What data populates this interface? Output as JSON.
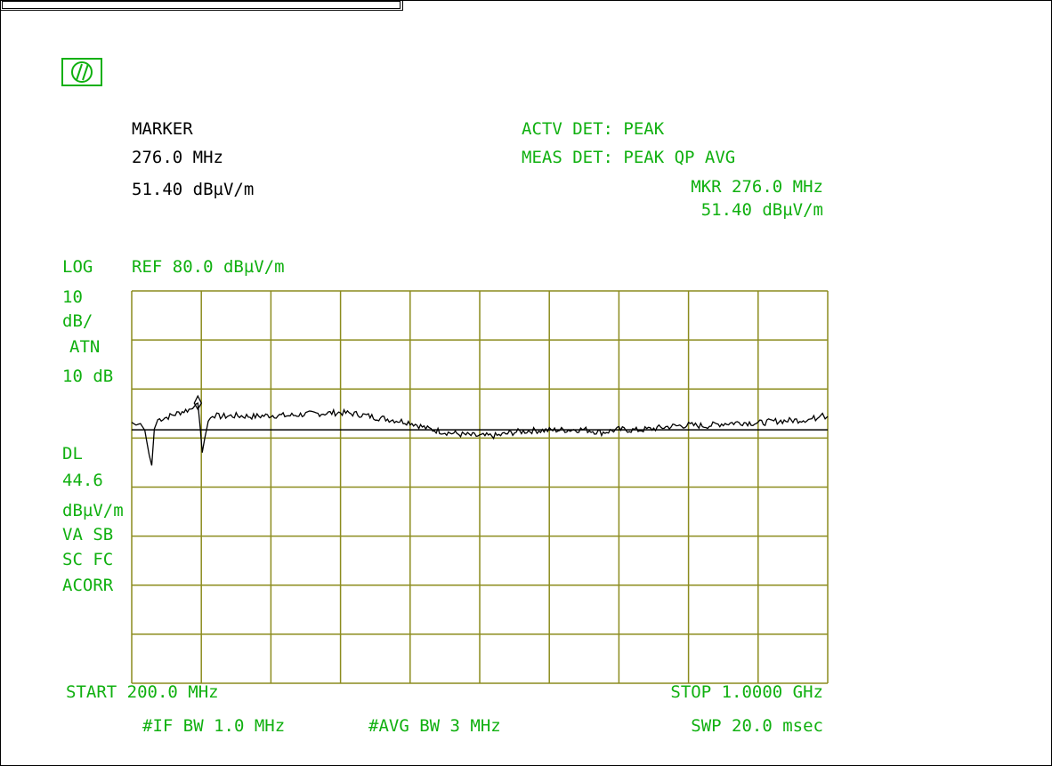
{
  "colors": {
    "text_black": "#000000",
    "text_green": "#10b010",
    "grid": "#8c8c1e",
    "trace": "#000000"
  },
  "logo": {
    "icon": "hp-logo-icon"
  },
  "marker_panel": {
    "title": "MARKER",
    "freq": "276.0 MHz",
    "level": "51.40 dBµV/m"
  },
  "detector_panel": {
    "actv_det": "ACTV DET: PEAK",
    "meas_det": "MEAS DET: PEAK QP AVG",
    "mkr_freq": "MKR 276.0 MHz",
    "mkr_level": "51.40 dBµV/m"
  },
  "side_labels": {
    "log": "LOG",
    "ref": "REF 80.0 dBµV/m",
    "scale_value": "10",
    "scale_unit": "dB/",
    "atn": "ATN",
    "atn_value": "10 dB",
    "dl": "DL",
    "dl_value": "44.6",
    "dl_unit": "dBµV/m",
    "va_sb": "VA SB",
    "sc_fc": "SC FC",
    "acorr": "ACORR"
  },
  "footer": {
    "start": "START 200.0 MHz",
    "stop": "STOP 1.0000 GHz",
    "if_bw": "#IF BW 1.0 MHz",
    "avg_bw": "#AVG BW 3 MHz",
    "swp": "SWP 20.0 msec"
  },
  "chart_data": {
    "type": "line",
    "xlabel": "",
    "ylabel": "",
    "x_unit": "MHz",
    "y_unit": "dBµV/m",
    "xlim": [
      200,
      1000
    ],
    "ylim": [
      -20,
      80
    ],
    "grid": true,
    "display_line": 44.6,
    "marker": {
      "x": 276.0,
      "y": 51.4
    },
    "series": [
      {
        "points": [
          [
            200,
            46.5
          ],
          [
            205,
            45.8
          ],
          [
            210,
            46.2
          ],
          [
            215,
            44.5
          ],
          [
            220,
            38.2
          ],
          [
            223,
            35.5
          ],
          [
            226,
            44.8
          ],
          [
            230,
            47.2
          ],
          [
            240,
            47.8
          ],
          [
            250,
            48.6
          ],
          [
            260,
            49.4
          ],
          [
            270,
            50.0
          ],
          [
            274,
            51.2
          ],
          [
            276,
            51.4
          ],
          [
            279,
            44.5
          ],
          [
            281,
            38.8
          ],
          [
            284,
            42.5
          ],
          [
            288,
            46.8
          ],
          [
            293,
            48.5
          ],
          [
            300,
            48.0
          ],
          [
            320,
            48.2
          ],
          [
            340,
            48.0
          ],
          [
            360,
            48.3
          ],
          [
            380,
            48.2
          ],
          [
            400,
            48.6
          ],
          [
            420,
            48.8
          ],
          [
            440,
            49.0
          ],
          [
            460,
            48.6
          ],
          [
            480,
            47.8
          ],
          [
            520,
            46.5
          ],
          [
            540,
            44.9
          ],
          [
            560,
            44.0
          ],
          [
            580,
            43.4
          ],
          [
            600,
            43.0
          ],
          [
            620,
            43.1
          ],
          [
            640,
            44.0
          ],
          [
            660,
            44.4
          ],
          [
            680,
            44.5
          ],
          [
            700,
            44.6
          ],
          [
            720,
            44.7
          ],
          [
            740,
            43.9
          ],
          [
            760,
            44.7
          ],
          [
            780,
            44.5
          ],
          [
            800,
            44.9
          ],
          [
            820,
            45.5
          ],
          [
            840,
            45.8
          ],
          [
            860,
            45.6
          ],
          [
            880,
            46.2
          ],
          [
            900,
            46.5
          ],
          [
            920,
            46.3
          ],
          [
            940,
            46.8
          ],
          [
            960,
            47.0
          ],
          [
            980,
            47.3
          ],
          [
            990,
            47.8
          ],
          [
            994,
            48.8
          ],
          [
            997,
            47.4
          ],
          [
            1000,
            48.0
          ]
        ]
      }
    ]
  }
}
